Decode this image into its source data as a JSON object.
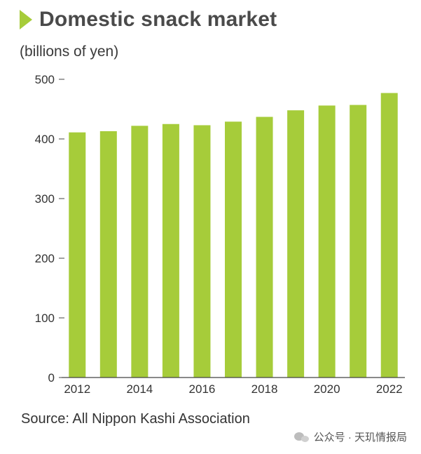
{
  "title": "Domestic snack market",
  "unit_label": "(billions of yen)",
  "source": "Source: All Nippon Kashi Association",
  "watermark": "公众号 · 天玑情报局",
  "colors": {
    "bar": "#a6cc3a",
    "title_arrow": "#a6cc3a",
    "text": "#3a3a3a"
  },
  "chart_data": {
    "type": "bar",
    "categories": [
      "2012",
      "2013",
      "2014",
      "2015",
      "2016",
      "2017",
      "2018",
      "2019",
      "2020",
      "2021",
      "2022"
    ],
    "x_tick_labels": [
      "2012",
      "",
      "2014",
      "",
      "2016",
      "",
      "2018",
      "",
      "2020",
      "",
      "2022"
    ],
    "values": [
      411,
      413,
      422,
      425,
      423,
      429,
      437,
      448,
      456,
      457,
      477
    ],
    "y_ticks": [
      0,
      100,
      200,
      300,
      400,
      500
    ],
    "y_tick_labels": [
      "0",
      "100",
      "200",
      "300",
      "400",
      "500"
    ],
    "ylim": [
      0,
      500
    ],
    "title": "Domestic snack market",
    "ylabel": "(billions of yen)",
    "xlabel": "",
    "grid": false,
    "legend": "none"
  }
}
